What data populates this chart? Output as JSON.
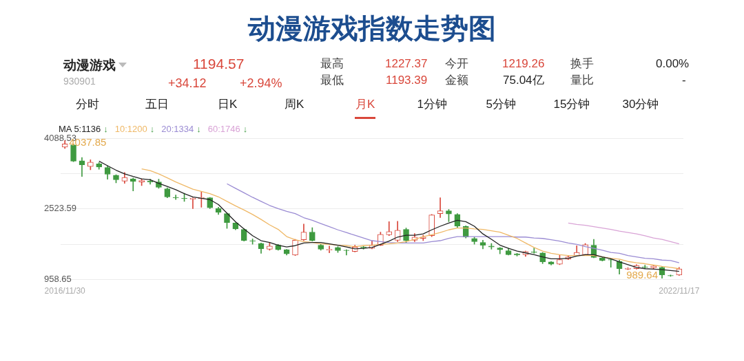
{
  "chart_data": {
    "type": "candlestick",
    "title": "动漫游戏指数走势图",
    "categories": [
      "2016/11/30",
      null,
      null,
      null,
      null,
      null,
      null,
      null,
      null,
      null,
      null,
      null,
      null,
      null,
      null,
      null,
      null,
      null,
      null,
      null,
      null,
      null,
      null,
      null,
      null,
      null,
      null,
      null,
      null,
      null,
      null,
      null,
      null,
      null,
      null,
      null,
      null,
      null,
      null,
      null,
      null,
      null,
      null,
      null,
      null,
      null,
      null,
      null,
      null,
      null,
      null,
      null,
      null,
      null,
      null,
      null,
      null,
      null,
      null,
      null,
      null,
      null,
      null,
      null,
      null,
      null,
      null,
      null,
      null,
      null,
      null,
      null,
      "2022/11/17"
    ],
    "ohlc": [
      [
        3890,
        4037.85,
        3860,
        3960
      ],
      [
        3940,
        3960,
        3570,
        3580
      ],
      [
        3590,
        3660,
        3240,
        3500
      ],
      [
        3460,
        3610,
        3390,
        3560
      ],
      [
        3520,
        3550,
        3400,
        3450
      ],
      [
        3440,
        3480,
        3180,
        3290
      ],
      [
        3270,
        3280,
        3100,
        3170
      ],
      [
        3140,
        3330,
        3090,
        3220
      ],
      [
        3190,
        3210,
        2920,
        3130
      ],
      [
        3120,
        3190,
        3040,
        3150
      ],
      [
        3140,
        3180,
        3070,
        3120
      ],
      [
        3120,
        3180,
        2980,
        3000
      ],
      [
        2970,
        2990,
        2770,
        2790
      ],
      [
        2780,
        2830,
        2730,
        2770
      ],
      [
        2760,
        2870,
        2690,
        2750
      ],
      [
        2740,
        2770,
        2530,
        2760
      ],
      [
        2750,
        2900,
        2560,
        2780
      ],
      [
        2770,
        2780,
        2530,
        2550
      ],
      [
        2530,
        2560,
        2400,
        2450
      ],
      [
        2420,
        2430,
        2090,
        2220
      ],
      [
        2210,
        2220,
        2060,
        2080
      ],
      [
        2070,
        2090,
        1810,
        1820
      ],
      [
        1820,
        1860,
        1740,
        1810
      ],
      [
        1760,
        1770,
        1540,
        1640
      ],
      [
        1630,
        1780,
        1610,
        1700
      ],
      [
        1720,
        1740,
        1610,
        1620
      ],
      [
        1620,
        1630,
        1500,
        1530
      ],
      [
        1500,
        1850,
        1490,
        1830
      ],
      [
        1840,
        2190,
        1820,
        2010
      ],
      [
        2010,
        2110,
        1810,
        1820
      ],
      [
        1720,
        1740,
        1610,
        1630
      ],
      [
        1610,
        1700,
        1550,
        1630
      ],
      [
        1670,
        1690,
        1560,
        1600
      ],
      [
        1610,
        1620,
        1500,
        1600
      ],
      [
        1580,
        1720,
        1570,
        1680
      ],
      [
        1680,
        1700,
        1630,
        1660
      ],
      [
        1650,
        1820,
        1640,
        1720
      ],
      [
        1720,
        2010,
        1710,
        1960
      ],
      [
        1950,
        2240,
        1930,
        2020
      ],
      [
        1830,
        2250,
        1800,
        2050
      ],
      [
        2070,
        2100,
        1780,
        1820
      ],
      [
        1830,
        1980,
        1800,
        1900
      ],
      [
        1870,
        1940,
        1820,
        1900
      ],
      [
        1930,
        2400,
        1910,
        2390
      ],
      [
        2420,
        2770,
        2330,
        2480
      ],
      [
        2480,
        2510,
        2240,
        2410
      ],
      [
        2400,
        2420,
        2110,
        2140
      ],
      [
        2140,
        2150,
        1880,
        1900
      ],
      [
        1870,
        1900,
        1740,
        1800
      ],
      [
        1780,
        1830,
        1640,
        1720
      ],
      [
        1700,
        1760,
        1630,
        1680
      ],
      [
        1660,
        1670,
        1530,
        1620
      ],
      [
        1600,
        1650,
        1500,
        1510
      ],
      [
        1530,
        1540,
        1480,
        1500
      ],
      [
        1510,
        1590,
        1470,
        1580
      ],
      [
        1570,
        1660,
        1540,
        1560
      ],
      [
        1550,
        1560,
        1310,
        1350
      ],
      [
        1350,
        1360,
        1280,
        1300
      ],
      [
        1300,
        1500,
        1290,
        1400
      ],
      [
        1410,
        1490,
        1400,
        1460
      ],
      [
        1490,
        1710,
        1480,
        1560
      ],
      [
        1510,
        1760,
        1500,
        1730
      ],
      [
        1720,
        1850,
        1440,
        1450
      ],
      [
        1440,
        1450,
        1370,
        1380
      ],
      [
        1400,
        1410,
        1230,
        1390
      ],
      [
        1360,
        1390,
        1080,
        1200
      ],
      [
        1190,
        1220,
        1180,
        1210
      ],
      [
        1200,
        1290,
        1190,
        1270
      ],
      [
        1240,
        1280,
        1200,
        1230
      ],
      [
        1220,
        1280,
        1190,
        1260
      ],
      [
        1230,
        1250,
        989.64,
        1060
      ],
      [
        1050,
        1060,
        1030,
        1040
      ],
      [
        1060,
        1230,
        1050,
        1194.57
      ]
    ],
    "colors": [
      "#d9473b",
      "#3f9a40",
      "#3f9a40",
      "#d9473b",
      "#3f9a40",
      "#3f9a40",
      "#3f9a40",
      "#d9473b",
      "#3f9a40",
      "#d9473b",
      "#3f9a40",
      "#3f9a40",
      "#3f9a40",
      "#3f9a40",
      "#3f9a40",
      "#d9473b",
      "#d9473b",
      "#3f9a40",
      "#3f9a40",
      "#3f9a40",
      "#3f9a40",
      "#3f9a40",
      "#3f9a40",
      "#3f9a40",
      "#d9473b",
      "#3f9a40",
      "#3f9a40",
      "#d9473b",
      "#d9473b",
      "#3f9a40",
      "#3f9a40",
      "#d9473b",
      "#3f9a40",
      "#3f9a40",
      "#d9473b",
      "#3f9a40",
      "#d9473b",
      "#d9473b",
      "#d9473b",
      "#d9473b",
      "#3f9a40",
      "#d9473b",
      "#d9473b",
      "#d9473b",
      "#d9473b",
      "#3f9a40",
      "#3f9a40",
      "#3f9a40",
      "#3f9a40",
      "#3f9a40",
      "#3f9a40",
      "#3f9a40",
      "#3f9a40",
      "#3f9a40",
      "#d9473b",
      "#3f9a40",
      "#3f9a40",
      "#3f9a40",
      "#d9473b",
      "#d9473b",
      "#d9473b",
      "#d9473b",
      "#3f9a40",
      "#3f9a40",
      "#3f9a40",
      "#3f9a40",
      "#d9473b",
      "#d9473b",
      "#3f9a40",
      "#d9473b",
      "#3f9a40",
      "#3f9a40",
      "#d9473b"
    ],
    "series": [
      {
        "name": "MA 5:1136",
        "type": "line",
        "color": "#222222",
        "values": [
          null,
          null,
          null,
          null,
          3580,
          3480,
          3380,
          3300,
          3240,
          3190,
          3170,
          3090,
          3020,
          2950,
          2860,
          2790,
          2760,
          2730,
          2620,
          2430,
          2240,
          2080,
          1930,
          1820,
          1780,
          1720,
          1680,
          1710,
          1770,
          1780,
          1780,
          1750,
          1720,
          1680,
          1640,
          1650,
          1670,
          1740,
          1810,
          1900,
          1940,
          1940,
          1970,
          2060,
          2140,
          2210,
          2270,
          2240,
          2140,
          1970,
          1850,
          1720,
          1650,
          1590,
          1550,
          1510,
          1460,
          1420,
          1420,
          1430,
          1480,
          1510,
          1510,
          1460,
          1420,
          1350,
          1290,
          1230,
          1200,
          1190,
          1180,
          1160,
          1140
        ]
      },
      {
        "name": "10:1200",
        "type": "line",
        "color": "#efb866",
        "values": [
          null,
          null,
          null,
          null,
          null,
          null,
          null,
          null,
          null,
          3410,
          3370,
          3300,
          3210,
          3120,
          3040,
          2960,
          2910,
          2860,
          2790,
          2690,
          2590,
          2500,
          2400,
          2290,
          2170,
          2070,
          1910,
          1840,
          1800,
          1780,
          1750,
          1740,
          1720,
          1710,
          1690,
          1710,
          1720,
          1740,
          1750,
          1770,
          1800,
          1850,
          1910,
          1950,
          2000,
          2060,
          2100,
          2100,
          2080,
          2070,
          2040,
          2010,
          1940,
          1870,
          1770,
          1670,
          1590,
          1540,
          1510,
          1490,
          1490,
          1490,
          1490,
          1460,
          1430,
          1410,
          1360,
          1330,
          1310,
          1280,
          1250,
          1230,
          1200
        ]
      },
      {
        "name": "20:1334",
        "type": "line",
        "color": "#9a8bd3",
        "values": [
          null,
          null,
          null,
          null,
          null,
          null,
          null,
          null,
          null,
          null,
          null,
          null,
          null,
          null,
          null,
          null,
          null,
          null,
          null,
          3080,
          2980,
          2880,
          2780,
          2690,
          2600,
          2530,
          2470,
          2420,
          2330,
          2270,
          2200,
          2130,
          2060,
          2000,
          1940,
          1880,
          1820,
          1800,
          1780,
          1770,
          1770,
          1770,
          1770,
          1800,
          1820,
          1870,
          1910,
          1910,
          1910,
          1910,
          1910,
          1910,
          1910,
          1900,
          1900,
          1880,
          1870,
          1840,
          1810,
          1770,
          1740,
          1690,
          1650,
          1610,
          1560,
          1540,
          1490,
          1460,
          1430,
          1420,
          1390,
          1380,
          1330
        ]
      },
      {
        "name": "60:1746",
        "type": "line",
        "color": "#d9a3d6",
        "values": [
          null,
          null,
          null,
          null,
          null,
          null,
          null,
          null,
          null,
          null,
          null,
          null,
          null,
          null,
          null,
          null,
          null,
          null,
          null,
          null,
          null,
          null,
          null,
          null,
          null,
          null,
          null,
          null,
          null,
          null,
          null,
          null,
          null,
          null,
          null,
          null,
          null,
          null,
          null,
          null,
          null,
          null,
          null,
          null,
          null,
          null,
          null,
          null,
          null,
          null,
          null,
          null,
          null,
          null,
          null,
          null,
          null,
          null,
          null,
          2210,
          2180,
          2160,
          2130,
          2100,
          2070,
          2030,
          2000,
          1970,
          1930,
          1880,
          1850,
          1800,
          1750
        ]
      }
    ],
    "ylim": [
      958.65,
      4088.53
    ],
    "yticks": [
      958.65,
      {
        "value": 1741.12,
        "label": null
      },
      2523.59,
      {
        "value": 3306.06,
        "label": null
      },
      4088.53
    ],
    "grid": "y",
    "legend": "top left",
    "annotations": [
      "动漫游戏",
      "930901",
      "1194.57",
      "+34.12",
      "+2.94%",
      "最高",
      "1227.37",
      "最低",
      "1193.39",
      "今开",
      "1219.26",
      "金额",
      "75.04亿",
      "换手",
      "0.00%",
      "量比",
      "-",
      "分时",
      "五日",
      "日K",
      "周K",
      "月K",
      "1分钟",
      "5分钟",
      "15分钟",
      "30分钟",
      "4037.85",
      "989.64",
      "↓",
      "↓",
      "↓",
      "↓"
    ]
  }
}
